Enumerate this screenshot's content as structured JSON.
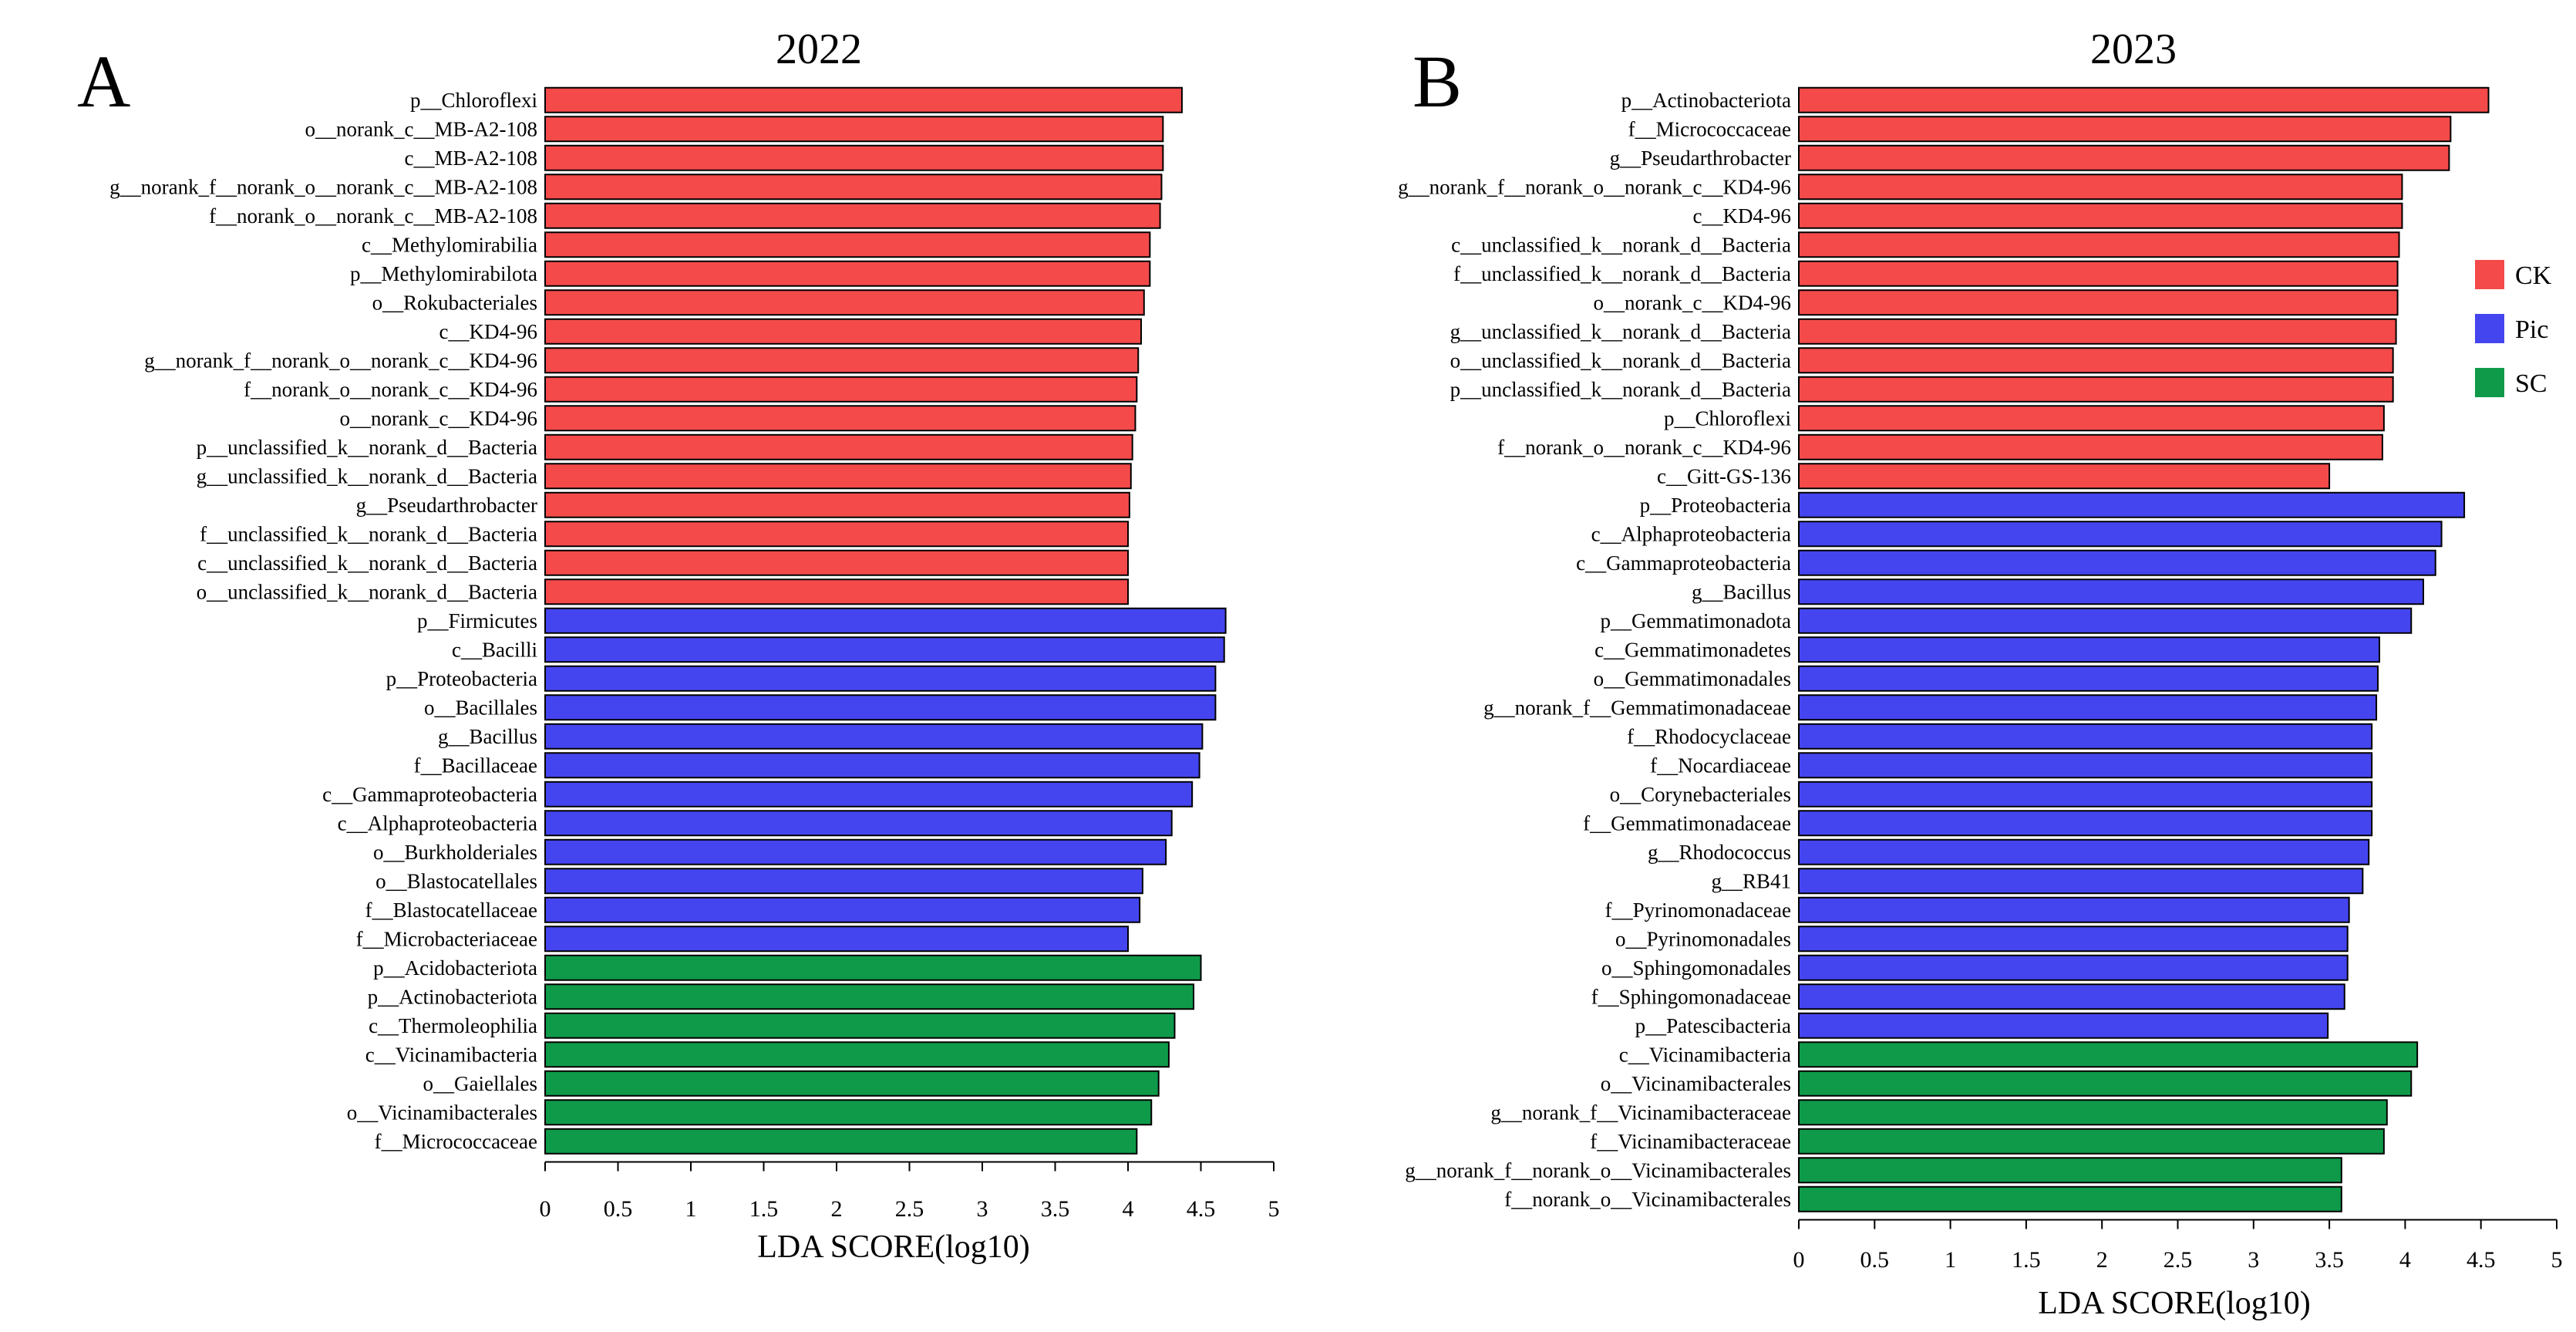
{
  "chart_data": [
    {
      "type": "bar",
      "orientation": "horizontal",
      "panel": "A",
      "title": "2022",
      "xlabel": "LDA SCORE(log10)",
      "ylabel": "",
      "xlim": [
        0,
        5
      ],
      "xticks": [
        "0",
        "0.5",
        "1",
        "1.5",
        "2",
        "2.5",
        "3",
        "3.5",
        "4",
        "4.5",
        "5"
      ],
      "grid": false,
      "bars": [
        {
          "label": "p__Chloroflexi",
          "value": 4.37,
          "group": "CK"
        },
        {
          "label": "o__norank_c__MB-A2-108",
          "value": 4.24,
          "group": "CK"
        },
        {
          "label": "c__MB-A2-108",
          "value": 4.24,
          "group": "CK"
        },
        {
          "label": "g__norank_f__norank_o__norank_c__MB-A2-108",
          "value": 4.23,
          "group": "CK"
        },
        {
          "label": "f__norank_o__norank_c__MB-A2-108",
          "value": 4.22,
          "group": "CK"
        },
        {
          "label": "c__Methylomirabilia",
          "value": 4.15,
          "group": "CK"
        },
        {
          "label": "p__Methylomirabilota",
          "value": 4.15,
          "group": "CK"
        },
        {
          "label": "o__Rokubacteriales",
          "value": 4.11,
          "group": "CK"
        },
        {
          "label": "c__KD4-96",
          "value": 4.09,
          "group": "CK"
        },
        {
          "label": "g__norank_f__norank_o__norank_c__KD4-96",
          "value": 4.07,
          "group": "CK"
        },
        {
          "label": "f__norank_o__norank_c__KD4-96",
          "value": 4.06,
          "group": "CK"
        },
        {
          "label": "o__norank_c__KD4-96",
          "value": 4.05,
          "group": "CK"
        },
        {
          "label": "p__unclassified_k__norank_d__Bacteria",
          "value": 4.03,
          "group": "CK"
        },
        {
          "label": "g__unclassified_k__norank_d__Bacteria",
          "value": 4.02,
          "group": "CK"
        },
        {
          "label": "g__Pseudarthrobacter",
          "value": 4.01,
          "group": "CK"
        },
        {
          "label": "f__unclassified_k__norank_d__Bacteria",
          "value": 4.0,
          "group": "CK"
        },
        {
          "label": "c__unclassified_k__norank_d__Bacteria",
          "value": 4.0,
          "group": "CK"
        },
        {
          "label": "o__unclassified_k__norank_d__Bacteria",
          "value": 4.0,
          "group": "CK"
        },
        {
          "label": "p__Firmicutes",
          "value": 4.67,
          "group": "Pic"
        },
        {
          "label": "c__Bacilli",
          "value": 4.66,
          "group": "Pic"
        },
        {
          "label": "p__Proteobacteria",
          "value": 4.6,
          "group": "Pic"
        },
        {
          "label": "o__Bacillales",
          "value": 4.6,
          "group": "Pic"
        },
        {
          "label": "g__Bacillus",
          "value": 4.51,
          "group": "Pic"
        },
        {
          "label": "f__Bacillaceae",
          "value": 4.49,
          "group": "Pic"
        },
        {
          "label": "c__Gammaproteobacteria",
          "value": 4.44,
          "group": "Pic"
        },
        {
          "label": "c__Alphaproteobacteria",
          "value": 4.3,
          "group": "Pic"
        },
        {
          "label": "o__Burkholderiales",
          "value": 4.26,
          "group": "Pic"
        },
        {
          "label": "o__Blastocatellales",
          "value": 4.1,
          "group": "Pic"
        },
        {
          "label": "f__Blastocatellaceae",
          "value": 4.08,
          "group": "Pic"
        },
        {
          "label": "f__Microbacteriaceae",
          "value": 4.0,
          "group": "Pic"
        },
        {
          "label": "p__Acidobacteriota",
          "value": 4.5,
          "group": "SC"
        },
        {
          "label": "p__Actinobacteriota",
          "value": 4.45,
          "group": "SC"
        },
        {
          "label": "c__Thermoleophilia",
          "value": 4.32,
          "group": "SC"
        },
        {
          "label": "c__Vicinamibacteria",
          "value": 4.28,
          "group": "SC"
        },
        {
          "label": "o__Gaiellales",
          "value": 4.21,
          "group": "SC"
        },
        {
          "label": "o__Vicinamibacterales",
          "value": 4.16,
          "group": "SC"
        },
        {
          "label": "f__Micrococcaceae",
          "value": 4.06,
          "group": "SC"
        }
      ]
    },
    {
      "type": "bar",
      "orientation": "horizontal",
      "panel": "B",
      "title": "2023",
      "xlabel": "LDA SCORE(log10)",
      "ylabel": "",
      "xlim": [
        0,
        5
      ],
      "xticks": [
        "0",
        "0.5",
        "1",
        "1.5",
        "2",
        "2.5",
        "3",
        "3.5",
        "4",
        "4.5",
        "5"
      ],
      "grid": false,
      "bars": [
        {
          "label": "p__Actinobacteriota",
          "value": 4.55,
          "group": "CK"
        },
        {
          "label": "f__Micrococcaceae",
          "value": 4.3,
          "group": "CK"
        },
        {
          "label": "g__Pseudarthrobacter",
          "value": 4.29,
          "group": "CK"
        },
        {
          "label": "g__norank_f__norank_o__norank_c__KD4-96",
          "value": 3.98,
          "group": "CK"
        },
        {
          "label": "c__KD4-96",
          "value": 3.98,
          "group": "CK"
        },
        {
          "label": "c__unclassified_k__norank_d__Bacteria",
          "value": 3.96,
          "group": "CK"
        },
        {
          "label": "f__unclassified_k__norank_d__Bacteria",
          "value": 3.95,
          "group": "CK"
        },
        {
          "label": "o__norank_c__KD4-96",
          "value": 3.95,
          "group": "CK"
        },
        {
          "label": "g__unclassified_k__norank_d__Bacteria",
          "value": 3.94,
          "group": "CK"
        },
        {
          "label": "o__unclassified_k__norank_d__Bacteria",
          "value": 3.92,
          "group": "CK"
        },
        {
          "label": "p__unclassified_k__norank_d__Bacteria",
          "value": 3.92,
          "group": "CK"
        },
        {
          "label": "p__Chloroflexi",
          "value": 3.86,
          "group": "CK"
        },
        {
          "label": "f__norank_o__norank_c__KD4-96",
          "value": 3.85,
          "group": "CK"
        },
        {
          "label": "c__Gitt-GS-136",
          "value": 3.5,
          "group": "CK"
        },
        {
          "label": "p__Proteobacteria",
          "value": 4.39,
          "group": "Pic"
        },
        {
          "label": "c__Alphaproteobacteria",
          "value": 4.24,
          "group": "Pic"
        },
        {
          "label": "c__Gammaproteobacteria",
          "value": 4.2,
          "group": "Pic"
        },
        {
          "label": "g__Bacillus",
          "value": 4.12,
          "group": "Pic"
        },
        {
          "label": "p__Gemmatimonadota",
          "value": 4.04,
          "group": "Pic"
        },
        {
          "label": "c__Gemmatimonadetes",
          "value": 3.83,
          "group": "Pic"
        },
        {
          "label": "o__Gemmatimonadales",
          "value": 3.82,
          "group": "Pic"
        },
        {
          "label": "g__norank_f__Gemmatimonadaceae",
          "value": 3.81,
          "group": "Pic"
        },
        {
          "label": "f__Rhodocyclaceae",
          "value": 3.78,
          "group": "Pic"
        },
        {
          "label": "f__Nocardiaceae",
          "value": 3.78,
          "group": "Pic"
        },
        {
          "label": "o__Corynebacteriales",
          "value": 3.78,
          "group": "Pic"
        },
        {
          "label": "f__Gemmatimonadaceae",
          "value": 3.78,
          "group": "Pic"
        },
        {
          "label": "g__Rhodococcus",
          "value": 3.76,
          "group": "Pic"
        },
        {
          "label": "g__RB41",
          "value": 3.72,
          "group": "Pic"
        },
        {
          "label": "f__Pyrinomonadaceae",
          "value": 3.63,
          "group": "Pic"
        },
        {
          "label": "o__Pyrinomonadales",
          "value": 3.62,
          "group": "Pic"
        },
        {
          "label": "o__Sphingomonadales",
          "value": 3.62,
          "group": "Pic"
        },
        {
          "label": "f__Sphingomonadaceae",
          "value": 3.6,
          "group": "Pic"
        },
        {
          "label": "p__Patescibacteria",
          "value": 3.49,
          "group": "Pic"
        },
        {
          "label": "c__Vicinamibacteria",
          "value": 4.08,
          "group": "SC"
        },
        {
          "label": "o__Vicinamibacterales",
          "value": 4.04,
          "group": "SC"
        },
        {
          "label": "g__norank_f__Vicinamibacteraceae",
          "value": 3.88,
          "group": "SC"
        },
        {
          "label": "f__Vicinamibacteraceae",
          "value": 3.86,
          "group": "SC"
        },
        {
          "label": "g__norank_f__norank_o__Vicinamibacterales",
          "value": 3.58,
          "group": "SC"
        },
        {
          "label": "f__norank_o__Vicinamibacterales",
          "value": 3.58,
          "group": "SC"
        }
      ]
    }
  ],
  "legend": {
    "placement": "right",
    "items": [
      {
        "group": "CK",
        "label": "CK",
        "color": "#f44a4a"
      },
      {
        "group": "Pic",
        "label": "Pic",
        "color": "#4545ef"
      },
      {
        "group": "SC",
        "label": "SC",
        "color": "#0f9a4a"
      }
    ]
  },
  "colors": {
    "CK": "#f44a4a",
    "Pic": "#4545ef",
    "SC": "#0f9a4a",
    "axis": "#000000"
  }
}
